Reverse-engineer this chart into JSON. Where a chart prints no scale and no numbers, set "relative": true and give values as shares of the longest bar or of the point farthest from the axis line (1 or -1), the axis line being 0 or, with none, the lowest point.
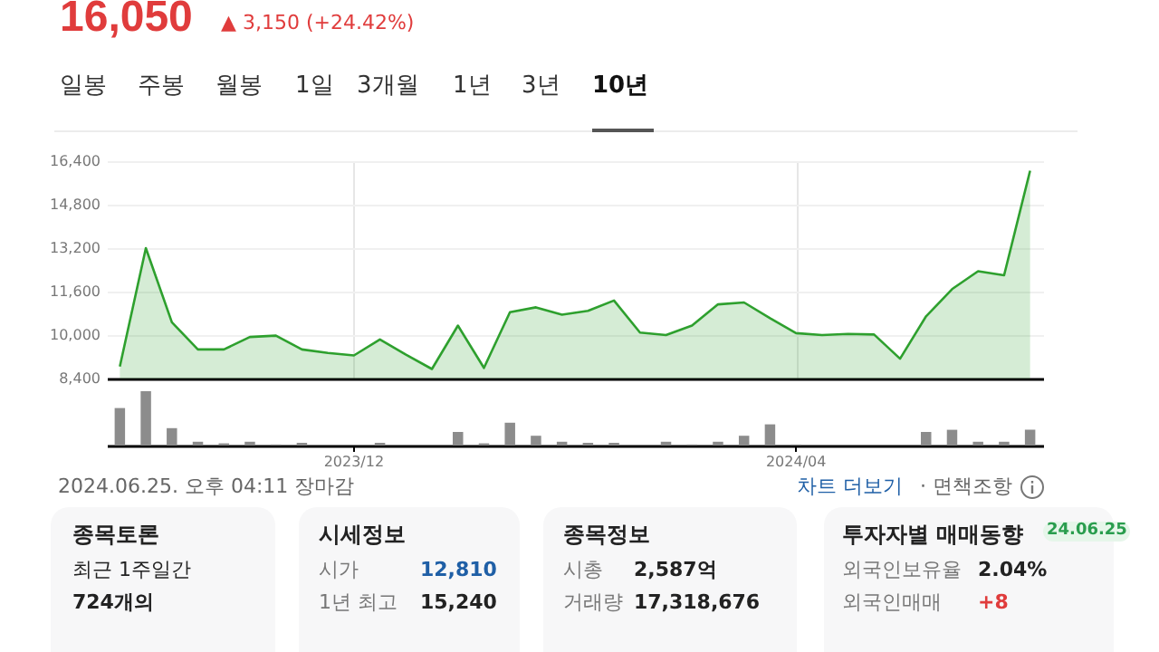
{
  "chart_data": [
    {
      "type": "other",
      "title": "16,050",
      "subtitle": "▲ 3,150 (+24.42%)",
      "annotations": [
        "일봉",
        "주봉",
        "월봉",
        "1일",
        "3개월",
        "1년",
        "3년",
        "10년"
      ]
    },
    {
      "type": "area",
      "categories": [
        null,
        null,
        null,
        null,
        null,
        null,
        null,
        null,
        null,
        "2023/12",
        null,
        null,
        null,
        null,
        null,
        null,
        null,
        null,
        null,
        null,
        null,
        null,
        null,
        null,
        null,
        null,
        "2024/04",
        null,
        null,
        null,
        null,
        null,
        null,
        null,
        null,
        null
      ],
      "series": [
        {
          "color": "#2ea02e",
          "values": [
            8840,
            13200,
            10470,
            9470,
            9470,
            9930,
            9980,
            9470,
            9340,
            9250,
            9840,
            9280,
            8750,
            10350,
            8790,
            10840,
            11020,
            10750,
            10890,
            11270,
            10090,
            10000,
            10350,
            11130,
            11200,
            10620,
            10070,
            10000,
            10040,
            10020,
            9130,
            10690,
            11690,
            12350,
            12200,
            16050
          ]
        }
      ],
      "ylim": [
        8400,
        16400
      ],
      "yticks": [
        {
          "value": 8400,
          "label": "8,400"
        },
        {
          "value": 10000,
          "label": "10,000"
        },
        {
          "value": 11600,
          "label": "11,600"
        },
        {
          "value": 13200,
          "label": "13,200"
        },
        {
          "value": 14800,
          "label": "14,800"
        },
        {
          "value": 16400,
          "label": "16,400"
        }
      ],
      "grid": true,
      "tick_labels": "y"
    },
    {
      "type": "bar",
      "relative": true,
      "color": "#8c8c8c",
      "categories": [
        null,
        null,
        null,
        null,
        null,
        null,
        null,
        null,
        null,
        "2023/12",
        null,
        null,
        null,
        null,
        null,
        null,
        null,
        null,
        null,
        null,
        null,
        null,
        null,
        null,
        null,
        null,
        "2024/04",
        null,
        null,
        null,
        null,
        null,
        null,
        null,
        null,
        null
      ],
      "values": [
        0.69,
        1,
        0.32,
        0.07,
        0.04,
        0.07,
        0.02,
        0.05,
        0,
        0,
        0.05,
        0,
        0,
        0.25,
        0.04,
        0.42,
        0.18,
        0.07,
        0.05,
        0.05,
        0,
        0.07,
        0.02,
        0.07,
        0.18,
        0.39,
        0.02,
        0,
        0,
        0,
        0,
        0.25,
        0.29,
        0.07,
        0.07,
        0.29
      ],
      "tick_labels": "x"
    },
    {
      "type": "other",
      "annotations": [
        "2024.06.25. 오후 04:11 장마감",
        "차트 더보기",
        "· 면책조항",
        "종목토론",
        "최근 1주일간",
        "724개의",
        "시세정보",
        "시가",
        "12,810",
        "1년 최고",
        "15,240",
        "종목정보",
        "시총",
        "2,587억",
        "거래량",
        "17,318,676",
        "투자자별 매매동향",
        "24.06.25",
        "외국인보유율",
        "2.04%",
        "외국인매매",
        "+8"
      ]
    }
  ]
}
